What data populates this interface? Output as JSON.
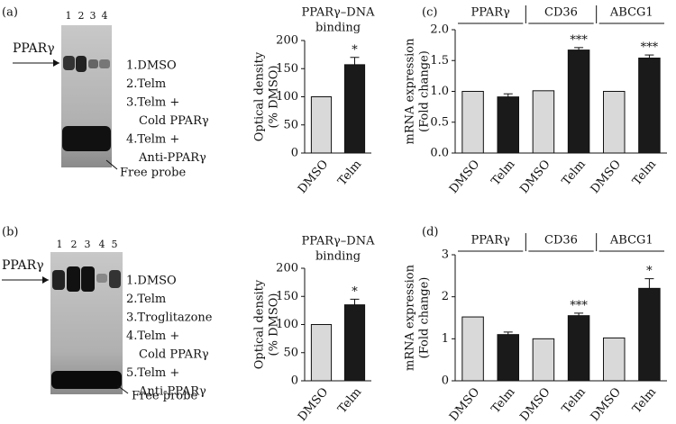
{
  "panel_labels": [
    "(a)",
    "(b)",
    "(c)",
    "(d)"
  ],
  "gels": [
    {
      "lanes": [
        "1",
        "2",
        "3",
        "4"
      ],
      "band_label": "PPARγ",
      "legend": [
        "1.DMSO",
        "2.Telm",
        "3.Telm +",
        "Cold PPARγ",
        "4.Telm +",
        "Anti-PPARγ"
      ],
      "probe_label": "Free probe"
    },
    {
      "lanes": [
        "1",
        "2",
        "3",
        "4",
        "5"
      ],
      "band_label": "PPARγ",
      "legend": [
        "1.DMSO",
        "2.Telm",
        "3.Troglitazone",
        "4.Telm +",
        "Cold PPARγ",
        "5.Telm +",
        "Anti-PPARγ"
      ],
      "probe_label": "Free probe"
    }
  ],
  "chart_data": [
    {
      "type": "bar",
      "title": "PPARγ–DNA",
      "subtitle": "binding",
      "ylabel_lines": [
        "Optical density",
        "(% DMSO)"
      ],
      "categories": [
        "DMSO",
        "Telm"
      ],
      "values": [
        100,
        157
      ],
      "errors": [
        null,
        13
      ],
      "colors": [
        "#d9d9d9",
        "#1a1a1a"
      ],
      "annotations": [
        null,
        "*"
      ],
      "ylim": [
        0,
        200
      ],
      "yticks": [
        0,
        50,
        100,
        150,
        200
      ]
    },
    {
      "type": "bar",
      "title": "PPARγ–DNA",
      "subtitle": "binding",
      "ylabel_lines": [
        "Optical density",
        "(% DMSO)"
      ],
      "categories": [
        "DMSO",
        "Telm"
      ],
      "values": [
        100,
        135
      ],
      "errors": [
        null,
        10
      ],
      "colors": [
        "#d9d9d9",
        "#1a1a1a"
      ],
      "annotations": [
        null,
        "*"
      ],
      "ylim": [
        0,
        200
      ],
      "yticks": [
        0,
        50,
        100,
        150,
        200
      ]
    },
    {
      "type": "bar",
      "groups": [
        "PPARγ",
        "CD36",
        "ABCG1"
      ],
      "ylabel_lines": [
        "mRNA expression",
        "(Fold change)"
      ],
      "categories": [
        "DMSO",
        "Telm",
        "DMSO",
        "Telm",
        "DMSO",
        "Telm"
      ],
      "values": [
        1.0,
        0.91,
        1.01,
        1.67,
        1.0,
        1.54
      ],
      "errors": [
        null,
        0.05,
        null,
        0.04,
        null,
        0.05
      ],
      "colors": [
        "#d9d9d9",
        "#1a1a1a",
        "#d9d9d9",
        "#1a1a1a",
        "#d9d9d9",
        "#1a1a1a"
      ],
      "annotations": [
        null,
        null,
        null,
        "***",
        null,
        "***"
      ],
      "ylim": [
        0,
        2
      ],
      "yticks": [
        {
          "value": 0,
          "label": "0.0"
        },
        0.5,
        {
          "value": 1,
          "label": "1.0"
        },
        1.5,
        {
          "value": 2,
          "label": "2.0"
        }
      ]
    },
    {
      "type": "bar",
      "groups": [
        "PPARγ",
        "CD36",
        "ABCG1"
      ],
      "ylabel_lines": [
        "mRNA expression",
        "(Fold change)"
      ],
      "categories": [
        "DMSO",
        "Telm",
        "DMSO",
        "Telm",
        "DMSO",
        "Telm"
      ],
      "values": [
        1.52,
        1.1,
        1.0,
        1.55,
        1.02,
        2.2
      ],
      "errors": [
        null,
        0.06,
        null,
        0.06,
        null,
        0.23
      ],
      "colors": [
        "#d9d9d9",
        "#1a1a1a",
        "#d9d9d9",
        "#1a1a1a",
        "#d9d9d9",
        "#1a1a1a"
      ],
      "annotations": [
        null,
        null,
        null,
        "***",
        null,
        "*"
      ],
      "ylim": [
        0,
        3
      ],
      "yticks": [
        0,
        1,
        2,
        3
      ]
    }
  ]
}
